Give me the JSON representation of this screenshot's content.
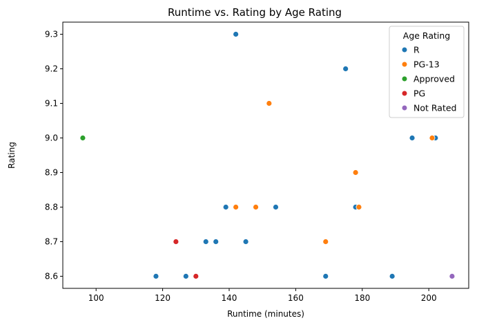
{
  "chart_data": {
    "type": "scatter",
    "title": "Runtime vs. Rating by Age Rating",
    "xlabel": "Runtime (minutes)",
    "ylabel": "Rating",
    "xlim": [
      90,
      212
    ],
    "ylim": [
      8.565,
      9.335
    ],
    "xticks": [
      100,
      120,
      140,
      160,
      180,
      200
    ],
    "yticks": [
      8.6,
      8.7,
      8.8,
      8.9,
      9.0,
      9.1,
      9.2,
      9.3
    ],
    "xtick_labels": [
      "100",
      "120",
      "140",
      "160",
      "180",
      "200"
    ],
    "ytick_labels": [
      "8.6",
      "8.7",
      "8.8",
      "8.9",
      "9.0",
      "9.1",
      "9.2",
      "9.3"
    ],
    "grid": false,
    "legend": {
      "title": "Age Rating",
      "position": "top-right"
    },
    "series": [
      {
        "name": "R",
        "color": "#1f77b4",
        "points": [
          [
            142,
            9.3
          ],
          [
            175,
            9.2
          ],
          [
            195,
            9.0
          ],
          [
            202,
            9.0
          ],
          [
            139,
            8.8
          ],
          [
            154,
            8.8
          ],
          [
            178,
            8.8
          ],
          [
            133,
            8.7
          ],
          [
            136,
            8.7
          ],
          [
            145,
            8.7
          ],
          [
            118,
            8.6
          ],
          [
            127,
            8.6
          ],
          [
            169,
            8.6
          ],
          [
            189,
            8.6
          ]
        ]
      },
      {
        "name": "PG-13",
        "color": "#ff7f0e",
        "points": [
          [
            152,
            9.1
          ],
          [
            201,
            9.0
          ],
          [
            178,
            8.9
          ],
          [
            142,
            8.8
          ],
          [
            148,
            8.8
          ],
          [
            179,
            8.8
          ],
          [
            169,
            8.7
          ]
        ]
      },
      {
        "name": "Approved",
        "color": "#2ca02c",
        "points": [
          [
            96,
            9.0
          ]
        ]
      },
      {
        "name": "PG",
        "color": "#d62728",
        "points": [
          [
            124,
            8.7
          ],
          [
            130,
            8.6
          ]
        ]
      },
      {
        "name": "Not Rated",
        "color": "#9467bd",
        "points": [
          [
            207,
            8.6
          ]
        ]
      }
    ]
  }
}
